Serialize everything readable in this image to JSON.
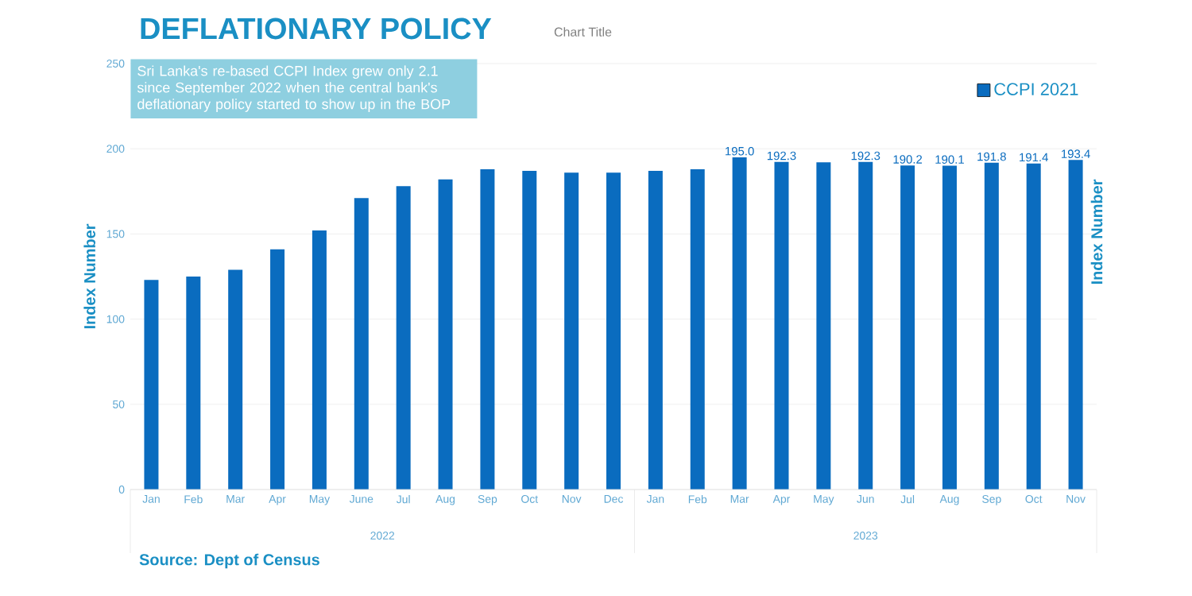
{
  "chart_data": {
    "type": "bar",
    "title": "DEFLATIONARY POLICY",
    "subtitle": "Chart Title",
    "ylabel": "Index Number",
    "y2label": "Index Number",
    "categories": [
      "Jan",
      "Feb",
      "Mar",
      "Apr",
      "May",
      "June",
      "Jul",
      "Aug",
      "Sep",
      "Oct",
      "Nov",
      "Dec",
      "Jan",
      "Feb",
      "Mar",
      "Apr",
      "May",
      "Jun",
      "Jul",
      "Aug",
      "Sep",
      "Oct",
      "Nov"
    ],
    "series": [
      {
        "name": "CCPI 2021",
        "color": "#0a6cbf",
        "values": [
          123,
          125,
          129,
          141,
          152,
          171,
          178,
          182,
          188,
          187,
          186,
          186,
          187,
          188,
          195.0,
          192.3,
          192,
          192.3,
          190.2,
          190.1,
          191.8,
          191.4,
          193.4
        ],
        "value_labels": [
          null,
          null,
          null,
          null,
          null,
          null,
          null,
          null,
          null,
          null,
          null,
          null,
          null,
          null,
          "195.0",
          "192.3",
          null,
          "192.3",
          "190.2",
          "190.1",
          "191.8",
          "191.4",
          "193.4"
        ]
      }
    ],
    "ylim": [
      0,
      250
    ],
    "yticks": [
      0,
      50,
      100,
      150,
      200,
      250
    ],
    "grid": "y",
    "legend": "top right",
    "annotations": [
      "Sri Lanka's re-based CCPI Index grew only 2.1 since September 2022 when the central bank's deflationary policy started to show up in the BOP",
      "2022",
      "2023",
      "Source: Dept of Census"
    ]
  }
}
